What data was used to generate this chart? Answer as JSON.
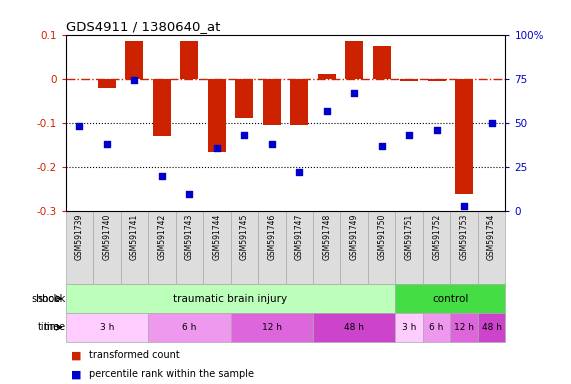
{
  "title": "GDS4911 / 1380640_at",
  "samples": [
    "GSM591739",
    "GSM591740",
    "GSM591741",
    "GSM591742",
    "GSM591743",
    "GSM591744",
    "GSM591745",
    "GSM591746",
    "GSM591747",
    "GSM591748",
    "GSM591749",
    "GSM591750",
    "GSM591751",
    "GSM591752",
    "GSM591753",
    "GSM591754"
  ],
  "bar_values": [
    0.0,
    -0.02,
    0.085,
    -0.13,
    0.085,
    -0.165,
    -0.09,
    -0.105,
    -0.105,
    0.01,
    0.085,
    0.075,
    -0.005,
    -0.005,
    -0.26,
    0.0
  ],
  "dot_values": [
    48,
    38,
    74,
    20,
    10,
    36,
    43,
    38,
    22,
    57,
    67,
    37,
    43,
    46,
    3,
    50
  ],
  "ylim_left": [
    -0.3,
    0.1
  ],
  "ylim_right": [
    0,
    100
  ],
  "yticks_left": [
    0.1,
    0.0,
    -0.1,
    -0.2,
    -0.3
  ],
  "yticks_right": [
    100,
    75,
    50,
    25,
    0
  ],
  "ytick_labels_left": [
    "0.1",
    "0",
    "-0.1",
    "-0.2",
    "-0.3"
  ],
  "ytick_labels_right": [
    "100%",
    "75",
    "50",
    "25",
    "0"
  ],
  "hline_y": 0.0,
  "dotted_lines": [
    -0.1,
    -0.2
  ],
  "bar_color": "#cc2200",
  "dot_color": "#0000cc",
  "shock_groups": [
    {
      "label": "traumatic brain injury",
      "start": 0,
      "end": 12,
      "color": "#bbffbb"
    },
    {
      "label": "control",
      "start": 12,
      "end": 16,
      "color": "#44dd44"
    }
  ],
  "time_groups": [
    {
      "label": "3 h",
      "start": 0,
      "end": 3,
      "color": "#ffccff"
    },
    {
      "label": "6 h",
      "start": 3,
      "end": 6,
      "color": "#ee99ee"
    },
    {
      "label": "12 h",
      "start": 6,
      "end": 9,
      "color": "#dd66dd"
    },
    {
      "label": "48 h",
      "start": 9,
      "end": 12,
      "color": "#cc44cc"
    },
    {
      "label": "3 h",
      "start": 12,
      "end": 13,
      "color": "#ffccff"
    },
    {
      "label": "6 h",
      "start": 13,
      "end": 14,
      "color": "#ee99ee"
    },
    {
      "label": "12 h",
      "start": 14,
      "end": 15,
      "color": "#dd66dd"
    },
    {
      "label": "48 h",
      "start": 15,
      "end": 16,
      "color": "#cc44cc"
    }
  ],
  "legend_bar_label": "transformed count",
  "legend_dot_label": "percentile rank within the sample",
  "background_color": "#ffffff",
  "label_bg_color": "#dddddd",
  "label_border_color": "#aaaaaa"
}
